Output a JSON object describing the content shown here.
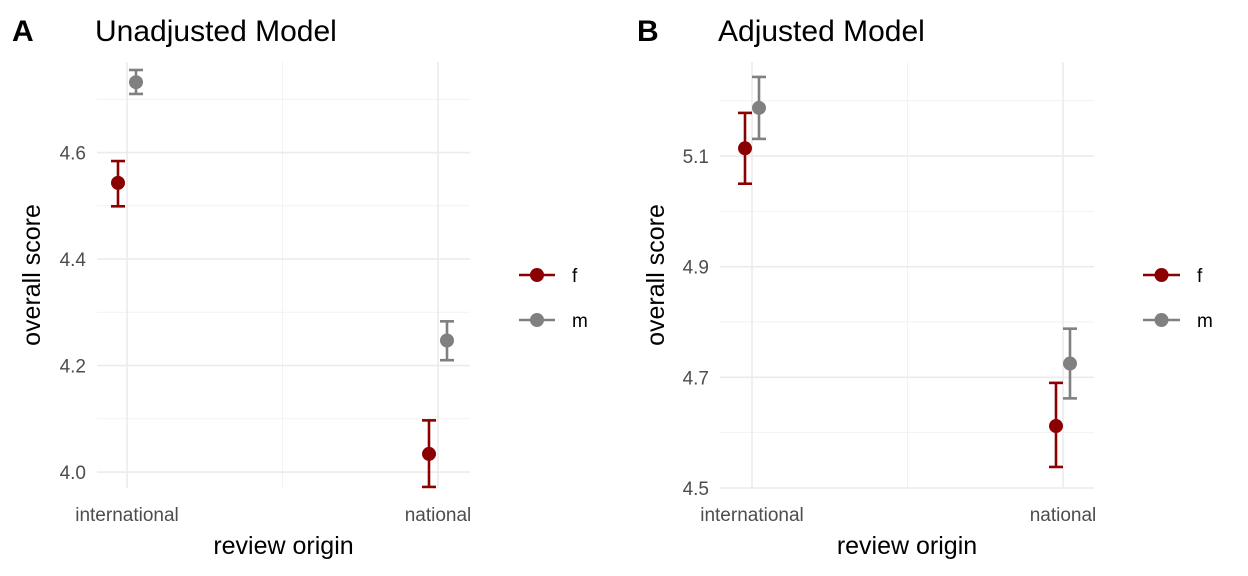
{
  "chart_data": [
    {
      "type": "scatter",
      "panel_label": "A",
      "title": "Unadjusted Model",
      "xlabel": "review origin",
      "ylabel": "overall score",
      "categories": [
        "international",
        "national"
      ],
      "ylim": [
        3.97,
        4.77
      ],
      "yticks": [
        4.0,
        4.2,
        4.4,
        4.6
      ],
      "ytick_labels": [
        "4.0",
        "4.2",
        "4.4",
        "4.6"
      ],
      "grid": true,
      "legend_position": "right",
      "series": [
        {
          "name": "f",
          "color": "#8b0000",
          "values": [
            4.543,
            4.034
          ],
          "lower": [
            4.499,
            3.972
          ],
          "upper": [
            4.584,
            4.097
          ]
        },
        {
          "name": "m",
          "color": "#808080",
          "values": [
            4.732,
            4.247
          ],
          "lower": [
            4.71,
            4.21
          ],
          "upper": [
            4.755,
            4.283
          ]
        }
      ]
    },
    {
      "type": "scatter",
      "panel_label": "B",
      "title": "Adjusted Model",
      "xlabel": "review origin",
      "ylabel": "overall score",
      "categories": [
        "international",
        "national"
      ],
      "ylim": [
        4.5,
        5.27
      ],
      "yticks": [
        4.5,
        4.7,
        4.9,
        5.1
      ],
      "ytick_labels": [
        "4.5",
        "4.7",
        "4.9",
        "5.1"
      ],
      "grid": true,
      "legend_position": "right",
      "series": [
        {
          "name": "f",
          "color": "#8b0000",
          "values": [
            5.114,
            4.612
          ],
          "lower": [
            5.05,
            4.538
          ],
          "upper": [
            5.178,
            4.69
          ]
        },
        {
          "name": "m",
          "color": "#808080",
          "values": [
            5.187,
            4.725
          ],
          "lower": [
            5.131,
            4.662
          ],
          "upper": [
            5.243,
            4.788
          ]
        }
      ]
    }
  ]
}
